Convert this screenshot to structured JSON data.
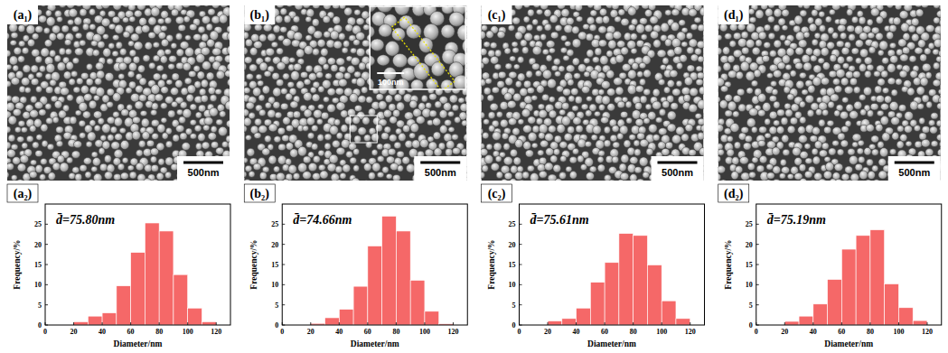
{
  "images": [
    {
      "label": "(a₁)",
      "scale_bar": "500nm"
    },
    {
      "label": "(b₁)",
      "scale_bar": "500nm",
      "inset": {
        "scale_bar": "100nm"
      }
    },
    {
      "label": "(c₁)",
      "scale_bar": "500nm"
    },
    {
      "label": "(d₁)",
      "scale_bar": "500nm"
    }
  ],
  "chart_data": [
    {
      "type": "histogram",
      "label": "(a₂)",
      "annotation": "d̄=75.80nm",
      "color": "#f56868",
      "bins": [
        20,
        30,
        40,
        50,
        60,
        70,
        80,
        90,
        100,
        110,
        120
      ],
      "values": [
        0.8,
        2.2,
        3.0,
        9.7,
        18.0,
        25.3,
        23.3,
        12.5,
        4.2,
        0.8
      ],
      "xlim": [
        0,
        130
      ],
      "ylim": [
        0,
        30
      ],
      "xticks": [
        0,
        20,
        40,
        60,
        80,
        100,
        120
      ],
      "yticks": [
        0,
        5,
        10,
        15,
        20,
        25
      ],
      "x_label": "Diameter/nm",
      "y_label": "Frequency/%"
    },
    {
      "type": "histogram",
      "label": "(b₂)",
      "annotation": "d̄=74.66nm",
      "color": "#f56868",
      "bins": [
        20,
        30,
        40,
        50,
        60,
        70,
        80,
        90,
        100,
        110,
        120
      ],
      "values": [
        0.4,
        1.8,
        3.9,
        9.6,
        19.6,
        27.0,
        23.3,
        11.1,
        3.4,
        0.3
      ],
      "xlim": [
        0,
        130
      ],
      "ylim": [
        0,
        30
      ],
      "xticks": [
        0,
        20,
        40,
        60,
        80,
        100,
        120
      ],
      "yticks": [
        0,
        5,
        10,
        15,
        20,
        25
      ],
      "x_label": "Diameter/nm",
      "y_label": "Frequency/%"
    },
    {
      "type": "histogram",
      "label": "(c₂)",
      "annotation": "d̄=75.61nm",
      "color": "#f56868",
      "bins": [
        20,
        30,
        40,
        50,
        60,
        70,
        80,
        90,
        100,
        110,
        120
      ],
      "values": [
        1.0,
        1.6,
        4.2,
        10.6,
        15.5,
        22.7,
        22.2,
        14.9,
        6.0,
        1.6
      ],
      "xlim": [
        0,
        130
      ],
      "ylim": [
        0,
        30
      ],
      "xticks": [
        0,
        20,
        40,
        60,
        80,
        100,
        120
      ],
      "yticks": [
        0,
        5,
        10,
        15,
        20,
        25
      ],
      "x_label": "Diameter/nm",
      "y_label": "Frequency/%"
    },
    {
      "type": "histogram",
      "label": "(d₂)",
      "annotation": "d̄=75.19nm",
      "color": "#f56868",
      "bins": [
        20,
        30,
        40,
        50,
        60,
        70,
        80,
        90,
        100,
        110,
        120
      ],
      "values": [
        0.9,
        2.2,
        5.2,
        11.3,
        18.8,
        22.2,
        23.6,
        10.2,
        4.3,
        1.1
      ],
      "xlim": [
        0,
        130
      ],
      "ylim": [
        0,
        30
      ],
      "xticks": [
        0,
        20,
        40,
        60,
        80,
        100,
        120
      ],
      "yticks": [
        0,
        5,
        10,
        15,
        20,
        25
      ],
      "x_label": "Diameter/nm",
      "y_label": "Frequency/%"
    }
  ]
}
